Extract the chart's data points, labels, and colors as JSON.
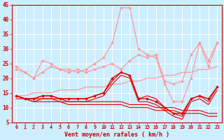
{
  "background_color": "#cceeff",
  "grid_color": "#ffffff",
  "xlabel": "Vent moyen/en rafales ( km/h )",
  "xlabel_color": "#cc0000",
  "tick_color": "#cc0000",
  "xlim": [
    -0.5,
    23.5
  ],
  "ylim": [
    5,
    45
  ],
  "yticks": [
    5,
    10,
    15,
    20,
    25,
    30,
    35,
    40,
    45
  ],
  "xticks": [
    0,
    1,
    2,
    3,
    4,
    5,
    6,
    7,
    8,
    9,
    10,
    11,
    12,
    13,
    14,
    15,
    16,
    17,
    18,
    19,
    20,
    21,
    22,
    23
  ],
  "lines": [
    {
      "x": [
        0,
        1,
        2,
        3,
        4,
        5,
        6,
        7,
        8,
        9,
        10,
        11,
        12,
        13,
        14,
        15,
        16,
        17,
        18,
        19,
        20,
        21,
        22,
        23
      ],
      "y": [
        23,
        22,
        20,
        26,
        25,
        23,
        23,
        22,
        23,
        25,
        27,
        32,
        44,
        44,
        30,
        28,
        27,
        18,
        12,
        12,
        20,
        32,
        24,
        32
      ],
      "color": "#ff9999",
      "lw": 0.9,
      "marker": "D",
      "ms": 2.0
    },
    {
      "x": [
        0,
        1,
        2,
        3,
        4,
        5,
        6,
        7,
        8,
        9,
        10,
        11,
        12,
        13,
        14,
        15,
        16,
        17,
        18,
        19,
        20,
        21,
        22,
        23
      ],
      "y": [
        14,
        14,
        15,
        15,
        15,
        16,
        16,
        16,
        17,
        17,
        17,
        18,
        18,
        19,
        19,
        20,
        20,
        21,
        21,
        22,
        22,
        23,
        23,
        24
      ],
      "color": "#ff9999",
      "lw": 0.9,
      "marker": null,
      "ms": 0
    },
    {
      "x": [
        0,
        1,
        2,
        3,
        4,
        5,
        6,
        7,
        8,
        9,
        10,
        11,
        12,
        13,
        14,
        15,
        16,
        17,
        18,
        19,
        20,
        21,
        22,
        23
      ],
      "y": [
        24,
        22,
        20,
        22,
        24,
        23,
        22,
        23,
        22,
        23,
        24,
        25,
        23,
        26,
        28,
        27,
        28,
        19,
        18,
        19,
        28,
        32,
        26,
        32
      ],
      "color": "#ff9999",
      "lw": 0.9,
      "marker": "D",
      "ms": 2.0
    },
    {
      "x": [
        0,
        1,
        2,
        3,
        4,
        5,
        6,
        7,
        8,
        9,
        10,
        11,
        12,
        13,
        14,
        15,
        16,
        17,
        18,
        19,
        20,
        21,
        22,
        23
      ],
      "y": [
        14,
        13,
        13,
        14,
        14,
        13,
        13,
        13,
        13,
        14,
        15,
        20,
        22,
        21,
        13,
        13,
        12,
        10,
        8,
        8,
        13,
        14,
        13,
        17
      ],
      "color": "#dd0000",
      "lw": 1.0,
      "marker": "D",
      "ms": 2.0
    },
    {
      "x": [
        0,
        1,
        2,
        3,
        4,
        5,
        6,
        7,
        8,
        9,
        10,
        11,
        12,
        13,
        14,
        15,
        16,
        17,
        18,
        19,
        20,
        21,
        22,
        23
      ],
      "y": [
        14,
        13,
        12,
        13,
        13,
        12,
        12,
        12,
        12,
        13,
        14,
        18,
        21,
        20,
        12,
        12,
        11,
        9,
        7,
        6,
        12,
        13,
        11,
        16
      ],
      "color": "#dd0000",
      "lw": 0.8,
      "marker": null,
      "ms": 0
    },
    {
      "x": [
        0,
        1,
        2,
        3,
        4,
        5,
        6,
        7,
        8,
        9,
        10,
        11,
        12,
        13,
        14,
        15,
        16,
        17,
        18,
        19,
        20,
        21,
        22,
        23
      ],
      "y": [
        14,
        13,
        13,
        14,
        14,
        13,
        13,
        13,
        13,
        14,
        15,
        19,
        22,
        21,
        13,
        14,
        13,
        10,
        8,
        7,
        13,
        14,
        12,
        17
      ],
      "color": "#dd0000",
      "lw": 0.8,
      "marker": null,
      "ms": 0
    },
    {
      "x": [
        0,
        1,
        2,
        3,
        4,
        5,
        6,
        7,
        8,
        9,
        10,
        11,
        12,
        13,
        14,
        15,
        16,
        17,
        18,
        19,
        20,
        21,
        22,
        23
      ],
      "y": [
        14,
        13,
        13,
        13,
        13,
        13,
        12,
        12,
        12,
        12,
        12,
        12,
        12,
        11,
        11,
        11,
        10,
        10,
        10,
        9,
        9,
        9,
        8,
        8
      ],
      "color": "#dd0000",
      "lw": 0.8,
      "marker": null,
      "ms": 0
    },
    {
      "x": [
        0,
        1,
        2,
        3,
        4,
        5,
        6,
        7,
        8,
        9,
        10,
        11,
        12,
        13,
        14,
        15,
        16,
        17,
        18,
        19,
        20,
        21,
        22,
        23
      ],
      "y": [
        13,
        13,
        12,
        12,
        12,
        12,
        11,
        11,
        11,
        11,
        11,
        11,
        11,
        10,
        10,
        10,
        9,
        9,
        9,
        8,
        8,
        8,
        7,
        7
      ],
      "color": "#dd0000",
      "lw": 0.8,
      "marker": null,
      "ms": 0
    }
  ]
}
